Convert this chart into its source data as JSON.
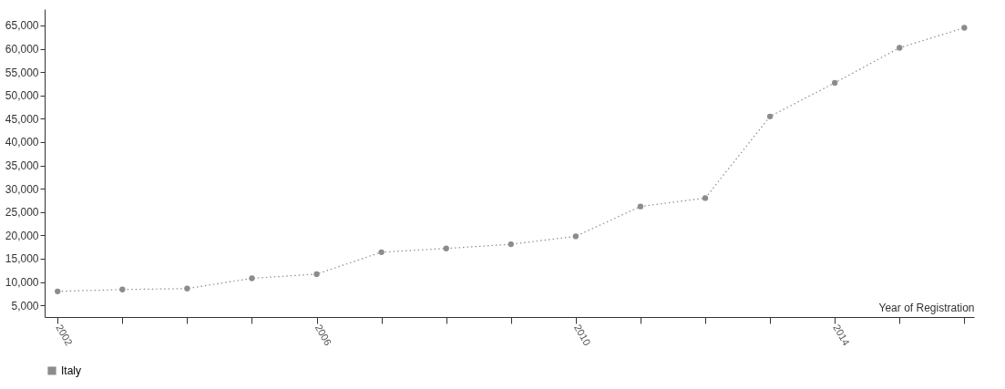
{
  "chart_data": {
    "type": "line",
    "xlabel": "Year of Registration",
    "x": [
      2002,
      2003,
      2004,
      2005,
      2006,
      2007,
      2008,
      2009,
      2010,
      2011,
      2012,
      2013,
      2014,
      2015,
      2016
    ],
    "series": [
      {
        "name": "Italy",
        "color": "#8c8c8c",
        "values": [
          8000,
          8400,
          8600,
          10800,
          11700,
          16400,
          17200,
          18100,
          19800,
          26200,
          28000,
          45500,
          52700,
          60200,
          64500
        ]
      }
    ],
    "xlim": [
      2001.8,
      2016.15
    ],
    "xticks": [
      2002,
      {
        "value": 2003,
        "label": null
      },
      {
        "value": 2004,
        "label": null
      },
      {
        "value": 2005,
        "label": null
      },
      2006,
      {
        "value": 2007,
        "label": null
      },
      {
        "value": 2008,
        "label": null
      },
      {
        "value": 2009,
        "label": null
      },
      2010,
      {
        "value": 2011,
        "label": null
      },
      {
        "value": 2012,
        "label": null
      },
      {
        "value": 2013,
        "label": null
      },
      2014,
      {
        "value": 2015,
        "label": null
      },
      {
        "value": 2016,
        "label": null
      }
    ],
    "ylim": [
      2500,
      68500
    ],
    "yticks": [
      {
        "value": 5000,
        "label": "5,000"
      },
      {
        "value": 10000,
        "label": "10,000"
      },
      {
        "value": 15000,
        "label": "15,000"
      },
      {
        "value": 20000,
        "label": "20,000"
      },
      {
        "value": 25000,
        "label": "25,000"
      },
      {
        "value": 30000,
        "label": "30,000"
      },
      {
        "value": 35000,
        "label": "35,000"
      },
      {
        "value": 40000,
        "label": "40,000"
      },
      {
        "value": 45000,
        "label": "45,000"
      },
      {
        "value": 50000,
        "label": "50,000"
      },
      {
        "value": 55000,
        "label": "55,000"
      },
      {
        "value": 60000,
        "label": "60,000"
      },
      {
        "value": 65000,
        "label": "65,000"
      }
    ],
    "grid": false,
    "legend": "bottom",
    "marker": "circle",
    "line_style": "dotted"
  }
}
